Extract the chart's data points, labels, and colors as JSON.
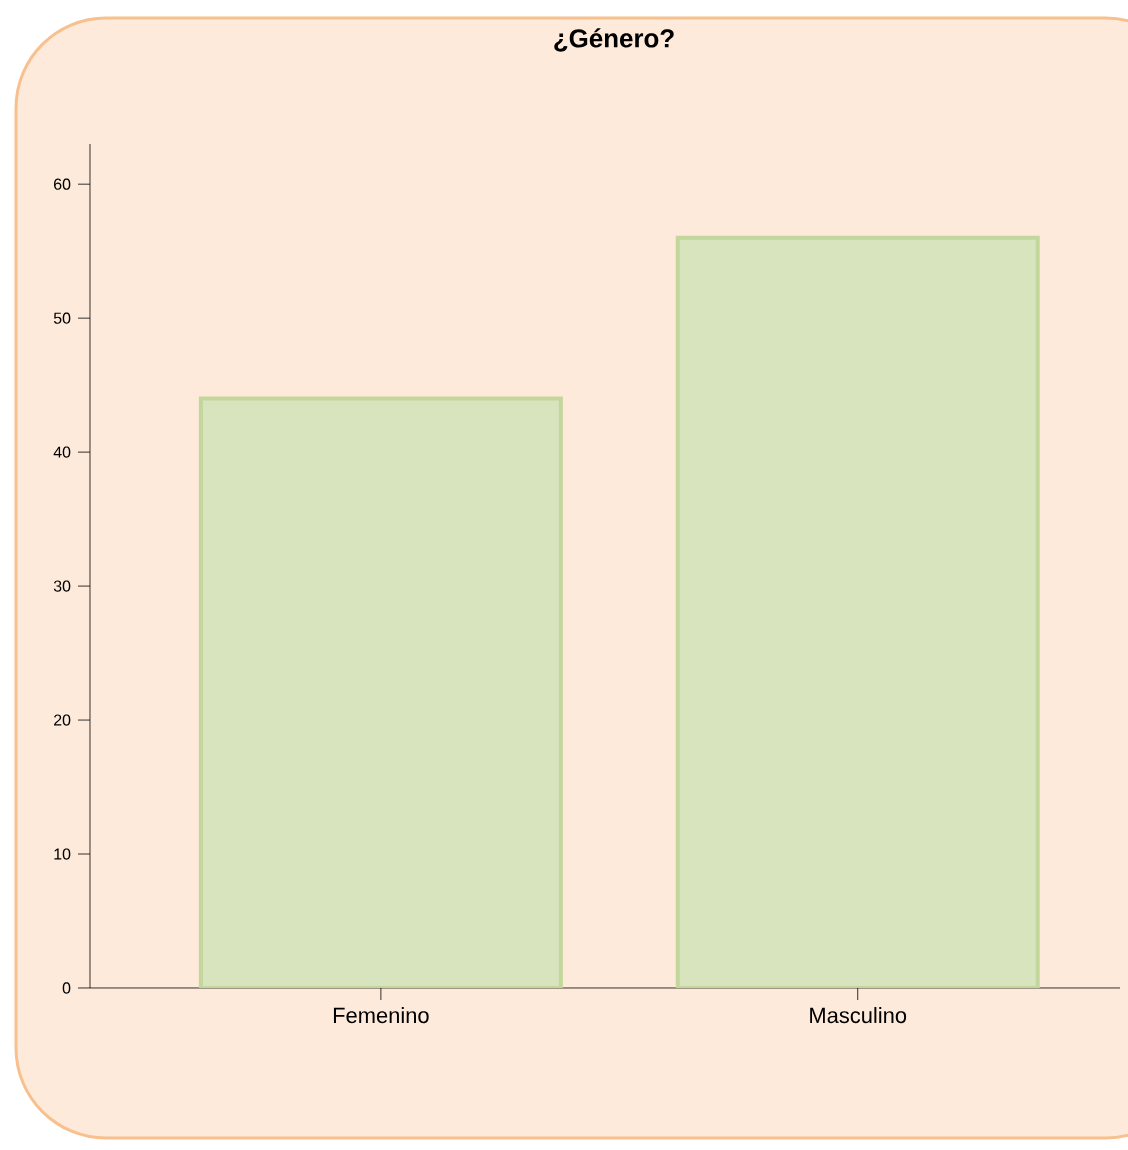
{
  "chart_data": {
    "type": "bar",
    "title": "¿Género?",
    "categories": [
      "Femenino",
      "Masculino"
    ],
    "values": [
      44,
      56
    ],
    "color": "#d7e4bd",
    "ylim": [
      0,
      63
    ],
    "yticks": [
      0,
      10,
      20,
      30,
      40,
      50,
      60
    ],
    "grid": false
  }
}
